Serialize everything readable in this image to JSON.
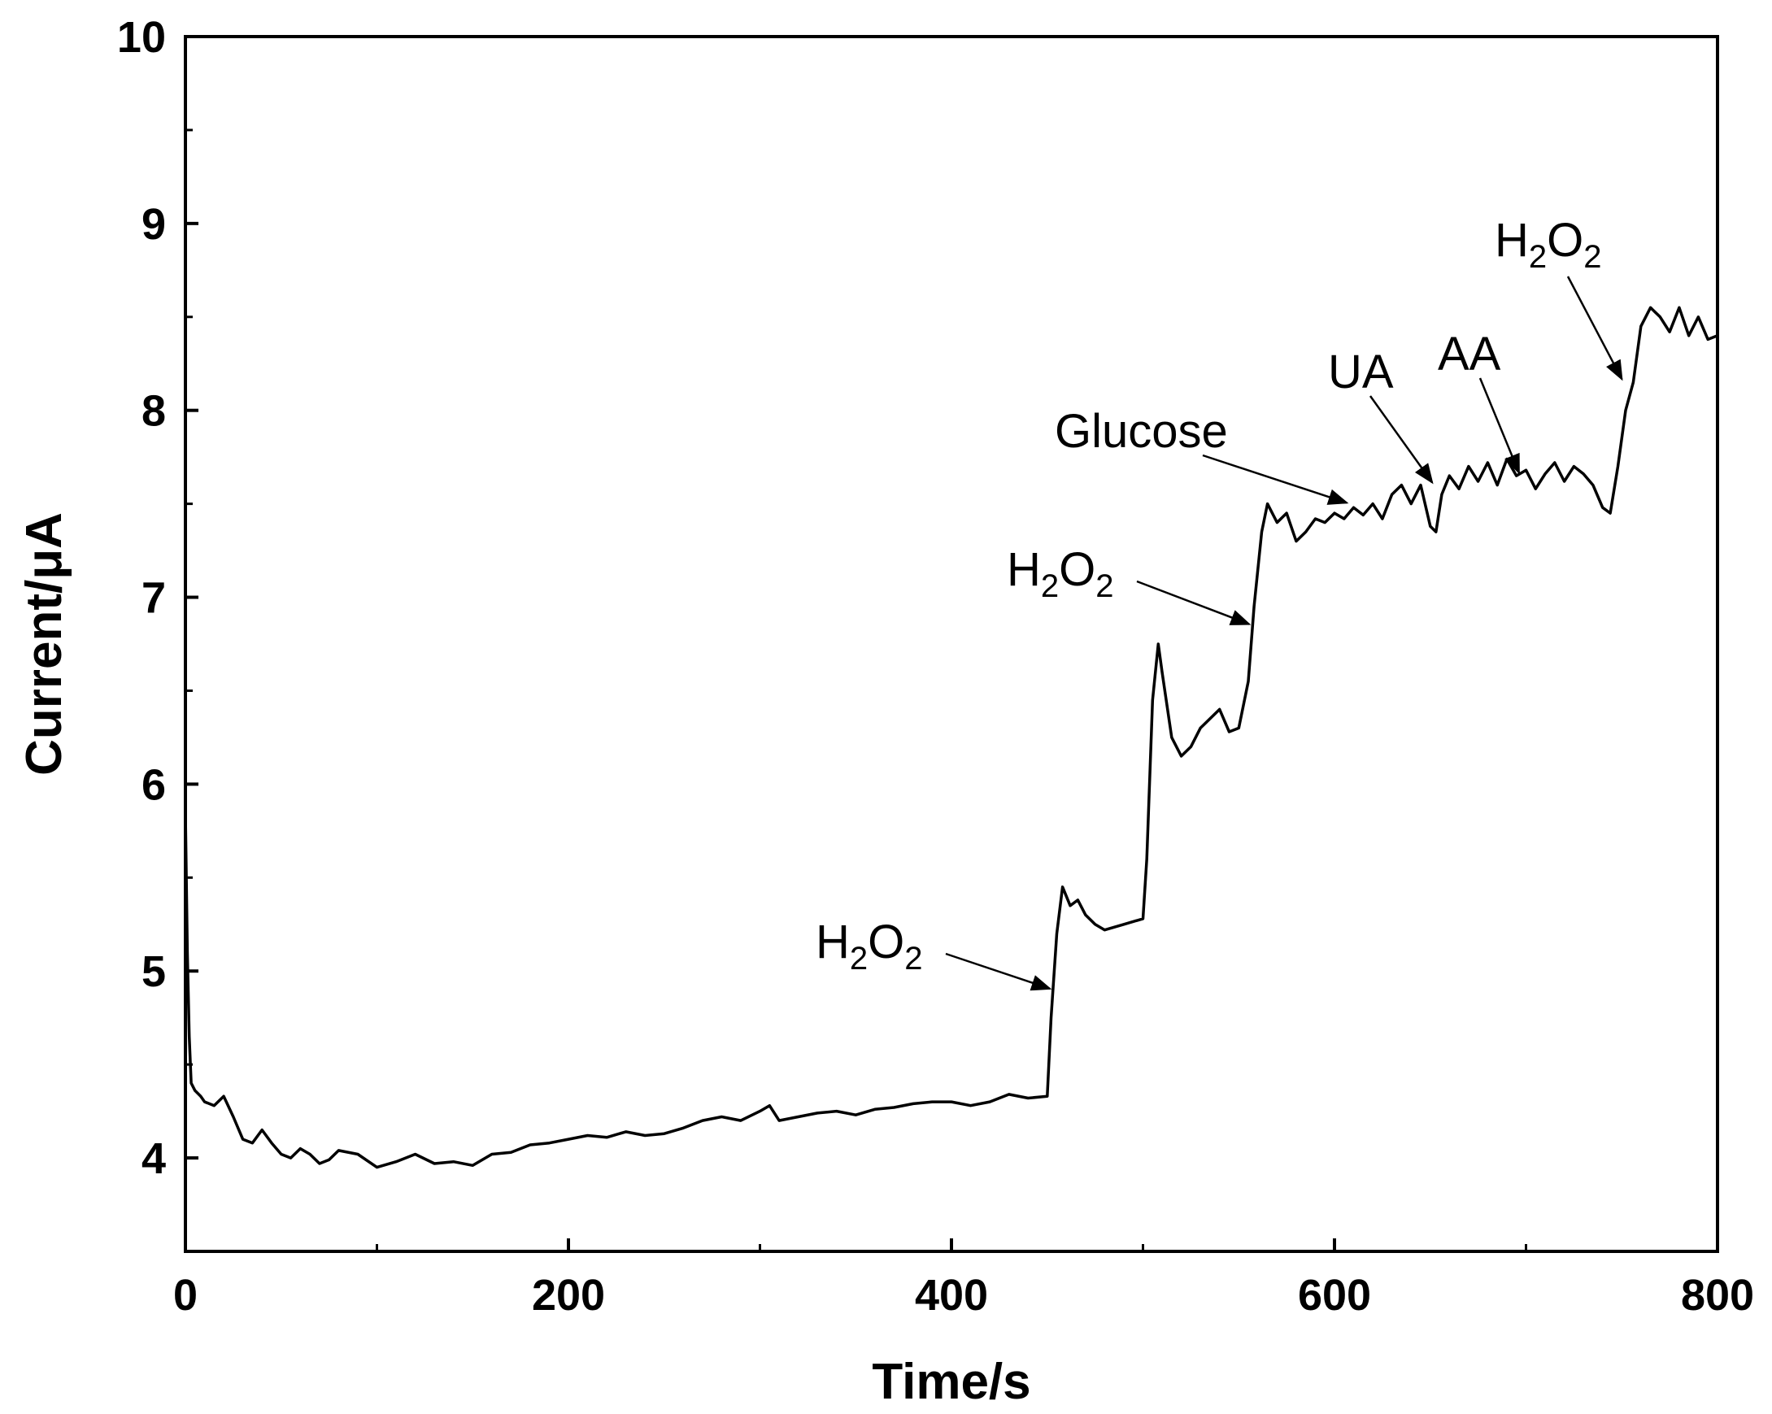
{
  "chart_data": {
    "type": "line",
    "title": "",
    "xlabel": "Time/s",
    "ylabel": "Current/μA",
    "xlim": [
      0,
      800
    ],
    "ylim": [
      3.5,
      10
    ],
    "xticks": [
      0,
      200,
      400,
      600,
      800
    ],
    "yticks": [
      4,
      5,
      6,
      7,
      8,
      9,
      10
    ],
    "grid": false,
    "series": [
      {
        "x": [
          0,
          1,
          2,
          3,
          5,
          8,
          10,
          15,
          20,
          25,
          30,
          35,
          40,
          45,
          50,
          55,
          60,
          65,
          70,
          75,
          80,
          90,
          100,
          110,
          120,
          130,
          140,
          150,
          160,
          170,
          180,
          190,
          200,
          210,
          220,
          230,
          240,
          250,
          260,
          270,
          280,
          290,
          300,
          305,
          310,
          320,
          330,
          340,
          350,
          360,
          370,
          380,
          390,
          400,
          410,
          420,
          430,
          440,
          450,
          452,
          455,
          458,
          462,
          466,
          470,
          475,
          480,
          490,
          500,
          502,
          505,
          508,
          510,
          515,
          520,
          525,
          530,
          535,
          540,
          545,
          550,
          555,
          558,
          562,
          565,
          570,
          575,
          580,
          585,
          590,
          595,
          600,
          605,
          610,
          615,
          620,
          625,
          630,
          635,
          640,
          645,
          650,
          653,
          656,
          660,
          665,
          670,
          675,
          680,
          685,
          690,
          695,
          700,
          705,
          710,
          715,
          720,
          725,
          730,
          735,
          740,
          744,
          748,
          752,
          756,
          760,
          765,
          770,
          775,
          780,
          785,
          790,
          795,
          800
        ],
        "y": [
          5.85,
          5.1,
          4.65,
          4.4,
          4.36,
          4.33,
          4.3,
          4.28,
          4.33,
          4.22,
          4.1,
          4.08,
          4.15,
          4.08,
          4.02,
          4.0,
          4.05,
          4.02,
          3.97,
          3.99,
          4.04,
          4.02,
          3.95,
          3.98,
          4.02,
          3.97,
          3.98,
          3.96,
          4.02,
          4.03,
          4.07,
          4.08,
          4.1,
          4.12,
          4.11,
          4.14,
          4.12,
          4.13,
          4.16,
          4.2,
          4.22,
          4.2,
          4.25,
          4.28,
          4.2,
          4.22,
          4.24,
          4.25,
          4.23,
          4.26,
          4.27,
          4.29,
          4.3,
          4.3,
          4.28,
          4.3,
          4.34,
          4.32,
          4.33,
          4.75,
          5.2,
          5.45,
          5.35,
          5.38,
          5.3,
          5.25,
          5.22,
          5.25,
          5.28,
          5.6,
          6.45,
          6.75,
          6.6,
          6.25,
          6.15,
          6.2,
          6.3,
          6.35,
          6.4,
          6.28,
          6.3,
          6.55,
          6.95,
          7.35,
          7.5,
          7.4,
          7.45,
          7.3,
          7.35,
          7.42,
          7.4,
          7.45,
          7.42,
          7.48,
          7.44,
          7.5,
          7.42,
          7.55,
          7.6,
          7.5,
          7.6,
          7.38,
          7.35,
          7.55,
          7.65,
          7.58,
          7.7,
          7.62,
          7.72,
          7.6,
          7.74,
          7.65,
          7.68,
          7.58,
          7.66,
          7.72,
          7.62,
          7.7,
          7.66,
          7.6,
          7.48,
          7.45,
          7.7,
          8.0,
          8.15,
          8.45,
          8.55,
          8.5,
          8.42,
          8.55,
          8.4,
          8.5,
          8.38,
          8.4
        ]
      }
    ],
    "annotations": [
      {
        "text": "H2O2",
        "main": "H",
        "sub": "2",
        "main2": "O",
        "sub2": "2",
        "x": 453,
        "y": 4.9
      },
      {
        "text": "H2O2",
        "main": "H",
        "sub": "2",
        "main2": "O",
        "sub2": "2",
        "x": 557,
        "y": 6.85
      },
      {
        "text": "Glucose",
        "x": 608,
        "y": 7.5
      },
      {
        "text": "UA",
        "x": 652,
        "y": 7.6
      },
      {
        "text": "AA",
        "x": 697,
        "y": 7.65
      },
      {
        "text": "H2O2",
        "main": "H",
        "sub": "2",
        "main2": "O",
        "sub2": "2",
        "x": 750,
        "y": 8.15
      }
    ]
  }
}
